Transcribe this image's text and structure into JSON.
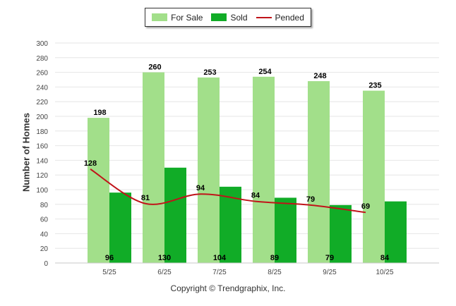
{
  "legend": {
    "for_sale": "For Sale",
    "sold": "Sold",
    "pended": "Pended"
  },
  "footer": "Copyright © Trendgraphix, Inc.",
  "colors": {
    "for_sale": "#a2df8a",
    "sold": "#11ac27",
    "pended": "#c0141a",
    "grid": "#e6e6e6"
  },
  "chart_data": {
    "type": "bar",
    "categories": [
      "5/25",
      "6/25",
      "7/25",
      "8/25",
      "9/25",
      "10/25"
    ],
    "series": [
      {
        "name": "For Sale",
        "type": "bar",
        "values": [
          198,
          260,
          253,
          254,
          248,
          235
        ]
      },
      {
        "name": "Sold",
        "type": "bar",
        "values": [
          96,
          130,
          104,
          89,
          79,
          84
        ]
      },
      {
        "name": "Pended",
        "type": "line",
        "values": [
          128,
          81,
          94,
          84,
          79,
          69
        ]
      }
    ],
    "ylabel": "Number of Homes",
    "ylim": [
      0,
      300
    ],
    "yticks": [
      0,
      20,
      40,
      60,
      80,
      100,
      120,
      140,
      160,
      180,
      200,
      220,
      240,
      260,
      280,
      300
    ],
    "grid": true,
    "legend_position": "top-center"
  }
}
